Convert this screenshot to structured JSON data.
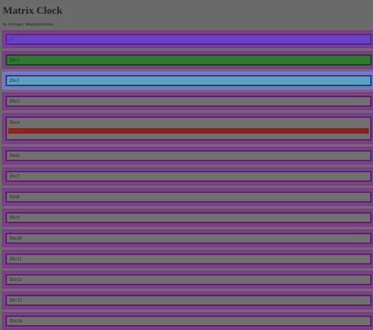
{
  "header": {
    "title": "Matrix Clock",
    "subtitle": "by SirVogue, MatrixIsScientist"
  },
  "rows": [
    {
      "label": "0"
    },
    {
      "label": "Div1"
    },
    {
      "label": "Div2"
    },
    {
      "label": "Div3"
    },
    {
      "label": "Div4",
      "sublabel": "sub Div5"
    },
    {
      "label": "Div6"
    },
    {
      "label": "Div7"
    },
    {
      "label": "Div8"
    },
    {
      "label": "Div9"
    },
    {
      "label": "Div10"
    },
    {
      "label": "Div11"
    },
    {
      "label": "Div12"
    },
    {
      "label": "Div13"
    },
    {
      "label": "Div14"
    }
  ]
}
